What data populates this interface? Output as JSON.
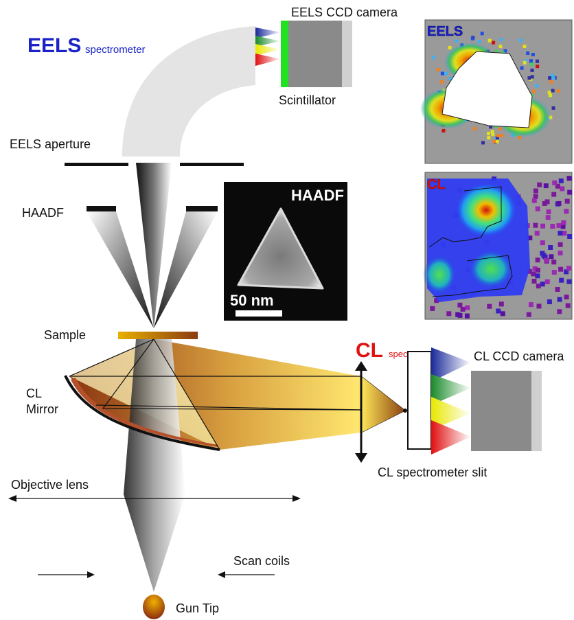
{
  "labels": {
    "eels_big": "EELS",
    "eels_small": "spectrometer",
    "eels_ccd": "EELS CCD camera",
    "scintillator": "Scintillator",
    "eels_aperture": "EELS aperture",
    "haadf": "HAADF",
    "sample": "Sample",
    "cl_mirror_line1": "CL",
    "cl_mirror_line2": "Mirror",
    "cl_big": "CL",
    "cl_small": "spectrometer",
    "cl_ccd": "CL CCD camera",
    "cl_slit": "CL spectrometer slit",
    "objective_lens": "Objective lens",
    "scan_coils": "Scan coils",
    "gun_tip": "Gun Tip"
  },
  "inset_haadf": {
    "title": "HAADF",
    "scale_bar": "50 nm"
  },
  "map_eels": {
    "title": "EELS"
  },
  "map_cl": {
    "title": "CL"
  },
  "colors": {
    "eels_title": "#1a22c8",
    "cl_title": "#e01010",
    "scintillator": "#22e022",
    "camera": "#8a8a8a",
    "camera_edge": "#d0d0d0",
    "mirror": "#b4502a",
    "map_background": "#9a9a9a"
  }
}
